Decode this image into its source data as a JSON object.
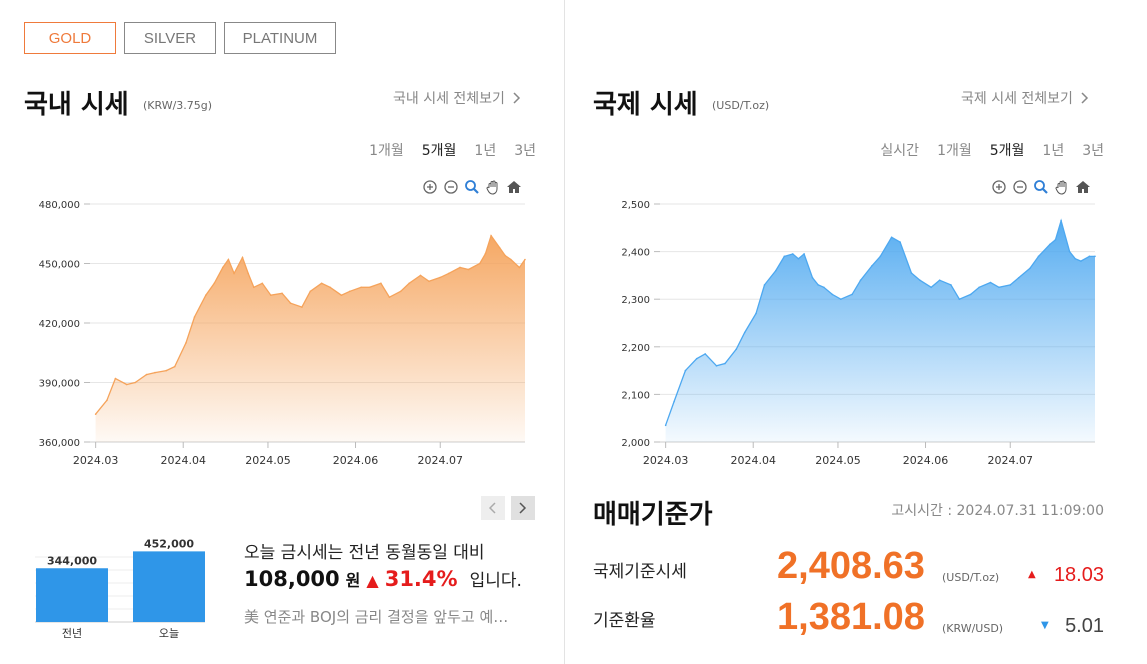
{
  "metal_tabs": [
    {
      "label": "GOLD",
      "active": true
    },
    {
      "label": "SILVER",
      "active": false
    },
    {
      "label": "PLATINUM",
      "active": false
    }
  ],
  "domestic": {
    "title": "국내 시세",
    "unit": "(KRW/3.75g)",
    "more_label": "국내 시세 전체보기",
    "periods": [
      {
        "label": "1개월",
        "active": false
      },
      {
        "label": "5개월",
        "active": true
      },
      {
        "label": "1년",
        "active": false
      },
      {
        "label": "3년",
        "active": false
      }
    ]
  },
  "international": {
    "title": "국제 시세",
    "unit": "(USD/T.oz)",
    "more_label": "국제 시세 전체보기",
    "periods": [
      {
        "label": "실시간",
        "active": false
      },
      {
        "label": "1개월",
        "active": false
      },
      {
        "label": "5개월",
        "active": true
      },
      {
        "label": "1년",
        "active": false
      },
      {
        "label": "3년",
        "active": false
      }
    ]
  },
  "chart_tool_icons": [
    "zoom-in-icon",
    "zoom-out-icon",
    "zoom-search-icon",
    "pan-hand-icon",
    "home-icon"
  ],
  "chart_data": [
    {
      "type": "area",
      "title": "",
      "xlabel": "",
      "ylabel": "",
      "x_ticks": [
        "2024.03",
        "2024.04",
        "2024.05",
        "2024.06",
        "2024.07"
      ],
      "y_ticks": [
        "360,000",
        "390,000",
        "420,000",
        "450,000",
        "480,000"
      ],
      "ylim": [
        360000,
        480000
      ],
      "color": "#f5a35b",
      "grid": true,
      "series": [
        {
          "x": [
            "2024-03-01",
            "2024-03-05",
            "2024-03-08",
            "2024-03-12",
            "2024-03-15",
            "2024-03-19",
            "2024-03-22",
            "2024-03-26",
            "2024-03-29",
            "2024-04-02",
            "2024-04-05",
            "2024-04-09",
            "2024-04-12",
            "2024-04-15",
            "2024-04-17",
            "2024-04-19",
            "2024-04-22",
            "2024-04-24",
            "2024-04-26",
            "2024-04-29",
            "2024-05-02",
            "2024-05-06",
            "2024-05-09",
            "2024-05-13",
            "2024-05-16",
            "2024-05-20",
            "2024-05-23",
            "2024-05-27",
            "2024-05-30",
            "2024-06-03",
            "2024-06-06",
            "2024-06-10",
            "2024-06-13",
            "2024-06-17",
            "2024-06-20",
            "2024-06-24",
            "2024-06-27",
            "2024-07-01",
            "2024-07-04",
            "2024-07-08",
            "2024-07-11",
            "2024-07-15",
            "2024-07-17",
            "2024-07-19",
            "2024-07-22",
            "2024-07-24",
            "2024-07-26",
            "2024-07-29",
            "2024-07-31"
          ],
          "values": [
            374000,
            381000,
            392000,
            389000,
            390000,
            394000,
            395000,
            396000,
            398000,
            410000,
            423000,
            434000,
            440000,
            448000,
            452000,
            445000,
            453000,
            445000,
            438000,
            440000,
            434000,
            435000,
            430000,
            428000,
            436000,
            440000,
            438000,
            434000,
            436000,
            438000,
            438000,
            440000,
            433000,
            436000,
            440000,
            444000,
            441000,
            443000,
            445000,
            448000,
            447000,
            450000,
            455000,
            464000,
            458000,
            454000,
            452000,
            448000,
            452000
          ]
        }
      ]
    },
    {
      "type": "area",
      "title": "",
      "xlabel": "",
      "ylabel": "",
      "x_ticks": [
        "2024.03",
        "2024.04",
        "2024.05",
        "2024.06",
        "2024.07"
      ],
      "y_ticks": [
        "2,000",
        "2,100",
        "2,200",
        "2,300",
        "2,400",
        "2,500"
      ],
      "ylim": [
        2000,
        2500
      ],
      "color": "#4da8f0",
      "grid": true,
      "series": [
        {
          "x": [
            "2024-03-01",
            "2024-03-04",
            "2024-03-08",
            "2024-03-12",
            "2024-03-15",
            "2024-03-19",
            "2024-03-22",
            "2024-03-26",
            "2024-03-29",
            "2024-04-02",
            "2024-04-05",
            "2024-04-09",
            "2024-04-12",
            "2024-04-15",
            "2024-04-17",
            "2024-04-19",
            "2024-04-22",
            "2024-04-24",
            "2024-04-26",
            "2024-04-29",
            "2024-05-02",
            "2024-05-06",
            "2024-05-09",
            "2024-05-13",
            "2024-05-16",
            "2024-05-20",
            "2024-05-23",
            "2024-05-27",
            "2024-05-30",
            "2024-06-03",
            "2024-06-06",
            "2024-06-10",
            "2024-06-13",
            "2024-06-17",
            "2024-06-20",
            "2024-06-24",
            "2024-06-27",
            "2024-07-01",
            "2024-07-04",
            "2024-07-08",
            "2024-07-11",
            "2024-07-15",
            "2024-07-17",
            "2024-07-19",
            "2024-07-22",
            "2024-07-24",
            "2024-07-26",
            "2024-07-29",
            "2024-07-31"
          ],
          "values": [
            2035,
            2085,
            2150,
            2175,
            2185,
            2160,
            2165,
            2195,
            2230,
            2270,
            2330,
            2360,
            2390,
            2395,
            2385,
            2395,
            2345,
            2330,
            2325,
            2310,
            2300,
            2310,
            2340,
            2370,
            2390,
            2430,
            2420,
            2355,
            2340,
            2325,
            2340,
            2330,
            2300,
            2310,
            2325,
            2335,
            2325,
            2330,
            2345,
            2365,
            2390,
            2415,
            2425,
            2465,
            2400,
            2385,
            2380,
            2390,
            2390
          ]
        }
      ]
    }
  ],
  "comparison": {
    "bars": [
      {
        "label": "전년",
        "value": 344000,
        "value_label": "344,000"
      },
      {
        "label": "오늘",
        "value": 452000,
        "value_label": "452,000"
      }
    ],
    "ylim": [
      0,
      480000
    ],
    "color": "#2f96e8",
    "text_line1": "오늘 금시세는 전년 동월동일 대비",
    "diff_amount": "108,000",
    "diff_unit": "원",
    "diff_percent": "31.4%",
    "text_suffix": "입니다.",
    "news": "美 연준과 BOJ의 금리 결정을 앞두고 예…",
    "up_color": "#e51c1c"
  },
  "base_price": {
    "title": "매매기준가",
    "notice_time": "고시시간 : 2024.07.31 11:09:00",
    "rows": [
      {
        "label": "국제기준시세",
        "value": "2,408.63",
        "unit": "(USD/T.oz)",
        "direction": "up",
        "change": "18.03"
      },
      {
        "label": "기준환율",
        "value": "1,381.08",
        "unit": "(KRW/USD)",
        "direction": "down",
        "change": "5.01"
      }
    ],
    "up_color": "#e51c1c",
    "down_color": "#2f96e8"
  },
  "nav": {
    "prev_icon": "chevron-left-icon",
    "next_icon": "chevron-right-icon"
  }
}
